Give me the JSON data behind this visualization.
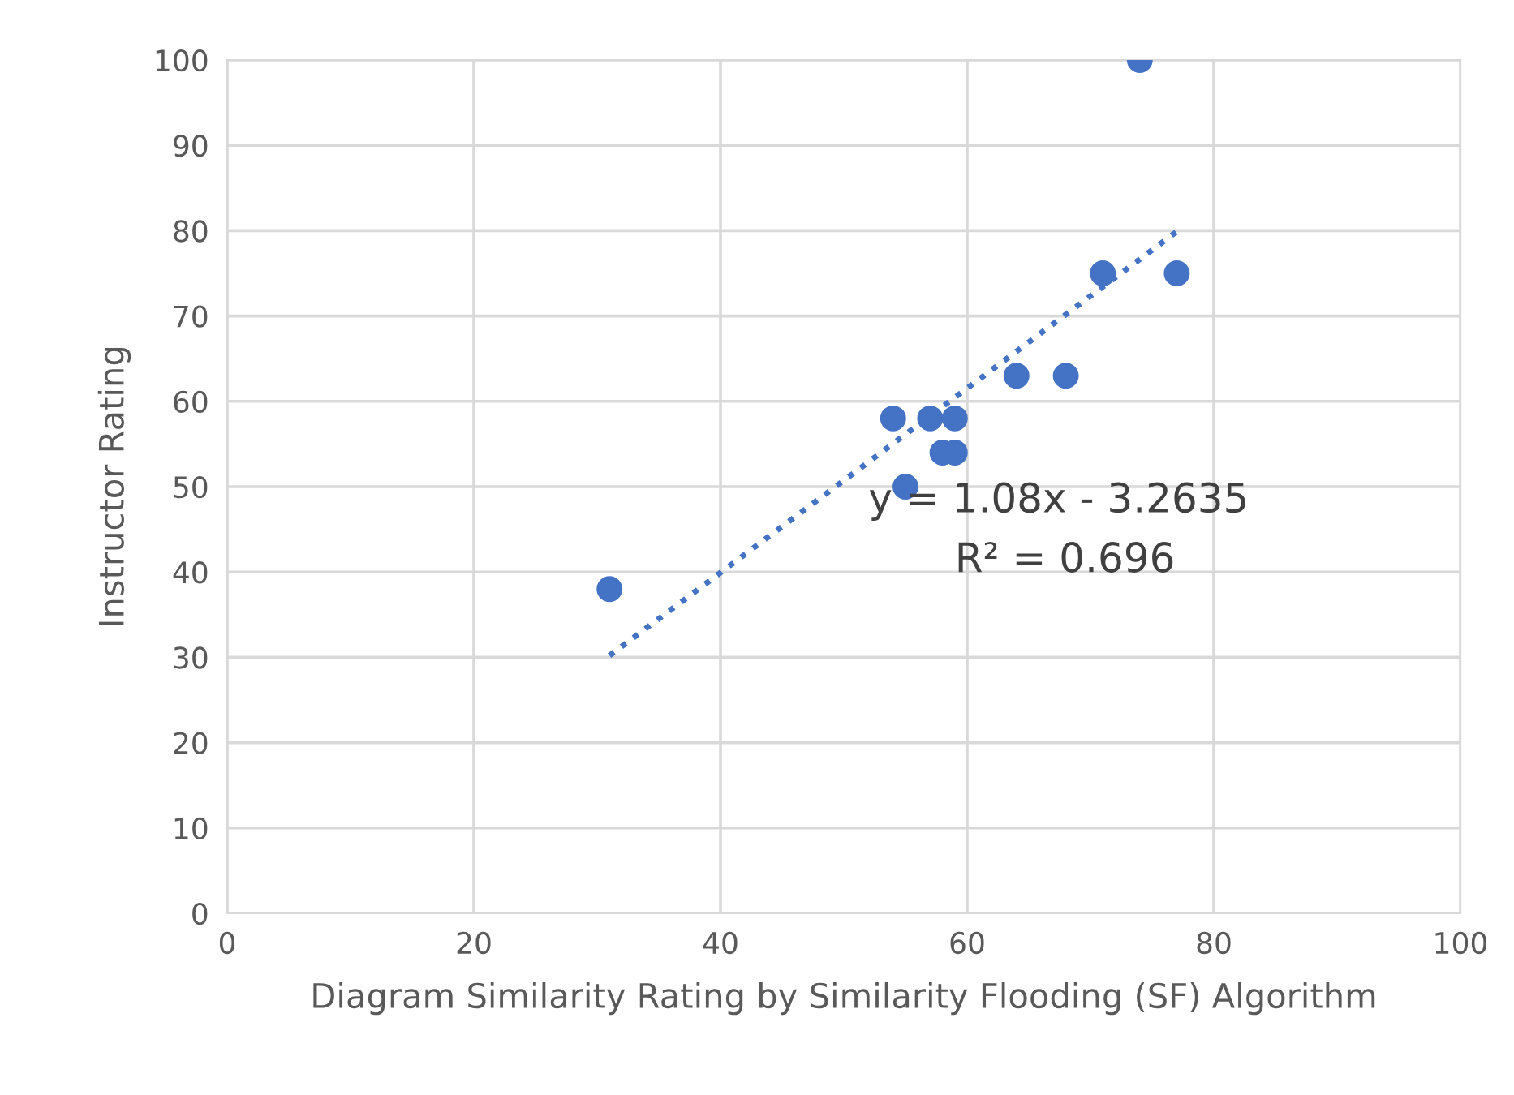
{
  "chart_data": {
    "type": "scatter",
    "xlabel": "Diagram Similarity Rating by Similarity Flooding (SF) Algorithm",
    "ylabel": "Instructor Rating",
    "xlim": [
      0,
      100
    ],
    "xticks": [
      0,
      20,
      40,
      60,
      80,
      100
    ],
    "ylim": [
      0,
      100
    ],
    "yticks": [
      0,
      10,
      20,
      30,
      40,
      50,
      60,
      70,
      80,
      90,
      100
    ],
    "grid": true,
    "marker": "circle",
    "series": [
      {
        "color": "#4472c4",
        "x": [
          31,
          54,
          55,
          57,
          58,
          59,
          59,
          64,
          68,
          71,
          74,
          77
        ],
        "values": [
          38,
          58,
          50,
          58,
          54,
          54,
          58,
          63,
          63,
          75,
          100,
          75
        ]
      },
      {
        "type": "line",
        "color": "#4472c4",
        "line_style": "dotted",
        "marker": "none",
        "x": [
          31,
          77
        ],
        "values": [
          30.2,
          79.9
        ]
      }
    ],
    "annotations": [
      "y = 1.08x - 3.2635",
      "R² = 0.696"
    ]
  }
}
